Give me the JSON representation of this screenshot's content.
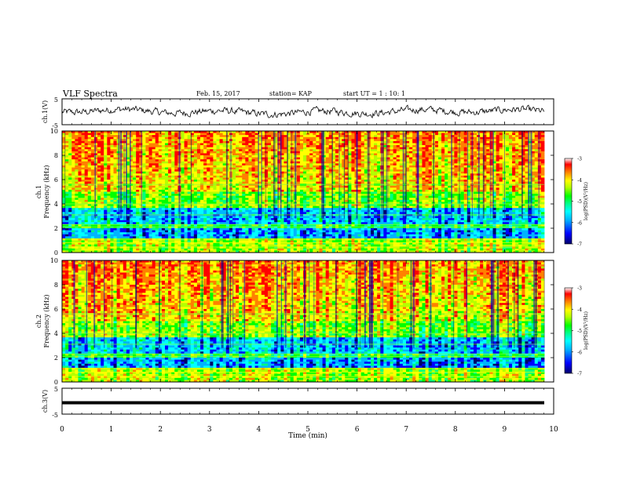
{
  "header": {
    "title": "VLF Spectra",
    "date": "Feb. 15, 2017",
    "station": "station= KAP",
    "start": "start UT =  1 : 10: 1"
  },
  "colors": {
    "trace": "#000000",
    "colormap": [
      "#00006a",
      "#0000ff",
      "#00b4ff",
      "#00ffff",
      "#00ff7f",
      "#00ff00",
      "#b4ff00",
      "#ffff00",
      "#ff8000",
      "#ff0000",
      "#ffffff"
    ]
  },
  "chart_data": [
    {
      "type": "line",
      "ylabel": "ch.1(V)",
      "ylim": [
        -5,
        5
      ],
      "yticks": [
        "5",
        "-5"
      ],
      "xlim": [
        0,
        10
      ],
      "note": "waveform around 0 V with roughly ±2 V fluctuations"
    },
    {
      "type": "heatmap",
      "ylabel": "ch.1 Frequency (kHz)",
      "ylim": [
        0,
        10
      ],
      "yticks": [
        "0",
        "2",
        "4",
        "6",
        "8",
        "10"
      ],
      "xlim": [
        0,
        10
      ],
      "colorbar": {
        "label": "log(PSD)(V²/Hz)",
        "range": [
          -7,
          -3
        ],
        "ticks": [
          "-3",
          "-4",
          "-5",
          "-6",
          "-7"
        ]
      }
    },
    {
      "type": "heatmap",
      "ylabel": "ch.2 Frequency (kHz)",
      "ylim": [
        0,
        10
      ],
      "yticks": [
        "0",
        "2",
        "4",
        "6",
        "8",
        "10"
      ],
      "xlim": [
        0,
        10
      ],
      "colorbar": {
        "label": "log(PSD)(V²/Hz)",
        "range": [
          -7,
          -3
        ],
        "ticks": [
          "-3",
          "-4",
          "-5",
          "-6",
          "-7"
        ]
      }
    },
    {
      "type": "line",
      "ylabel": "ch.3(V)",
      "ylim": [
        -5,
        5
      ],
      "yticks": [
        "5",
        "-5"
      ],
      "xlim": [
        0,
        10
      ],
      "constant_value": 0
    }
  ],
  "x_axis": {
    "label": "Time  (min)",
    "ticks": [
      "0",
      "1",
      "2",
      "3",
      "4",
      "5",
      "6",
      "7",
      "8",
      "9",
      "10"
    ]
  }
}
